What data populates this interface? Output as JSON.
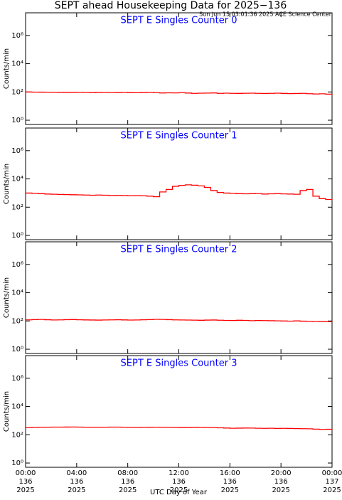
{
  "title": "SEPT ahead Housekeeping Data for 2025−136",
  "subtitle": "Sun Jun 15 03:01:36 2025 ACE Science Center",
  "x_label": "UTC Day of Year",
  "x_axis": {
    "xlim": [
      0,
      24
    ],
    "xticks": [
      {
        "value": 0,
        "label": [
          "00:00",
          "136",
          "2025"
        ]
      },
      {
        "value": 4,
        "label": [
          "04:00",
          "136",
          "2025"
        ]
      },
      {
        "value": 8,
        "label": [
          "08:00",
          "136",
          "2025"
        ]
      },
      {
        "value": 12,
        "label": [
          "12:00",
          "136",
          "2025"
        ]
      },
      {
        "value": 16,
        "label": [
          "16:00",
          "136",
          "2025"
        ]
      },
      {
        "value": 20,
        "label": [
          "20:00",
          "136",
          "2025"
        ]
      },
      {
        "value": 24,
        "label": [
          "00:00",
          "137",
          "2025"
        ]
      }
    ]
  },
  "chart_data": [
    {
      "type": "line",
      "title": "SEPT E Singles Counter 0",
      "y_label": "Counts/min",
      "log_y": true,
      "ylim": [
        0.5,
        40000000
      ],
      "yticks": [
        {
          "value": 1,
          "label": "10⁰"
        },
        {
          "value": 100,
          "label": "10²"
        },
        {
          "value": 10000,
          "label": "10⁴"
        },
        {
          "value": 1000000,
          "label": "10⁶"
        }
      ],
      "x": [
        0,
        0.5,
        1,
        1.5,
        2,
        2.5,
        3,
        3.5,
        4,
        4.5,
        5,
        5.5,
        6,
        6.5,
        7,
        7.5,
        8,
        8.5,
        9,
        9.5,
        10,
        10.5,
        11,
        11.5,
        12,
        12.5,
        13,
        13.5,
        14,
        14.5,
        15,
        15.5,
        16,
        16.5,
        17,
        17.5,
        18,
        18.5,
        19,
        19.5,
        20,
        20.5,
        21,
        21.5,
        22,
        22.5,
        23,
        23.5,
        24
      ],
      "series": [
        {
          "color": "#ff0000",
          "values": [
            100,
            98,
            97,
            96,
            95,
            94,
            93,
            94,
            95,
            92,
            90,
            93,
            92,
            91,
            90,
            92,
            89,
            88,
            90,
            92,
            88,
            85,
            87,
            86,
            88,
            84,
            80,
            82,
            83,
            85,
            80,
            82,
            80,
            79,
            81,
            82,
            80,
            78,
            80,
            82,
            79,
            77,
            78,
            80,
            75,
            72,
            74,
            70,
            72
          ]
        }
      ]
    },
    {
      "type": "line",
      "title": "SEPT E Singles Counter 1",
      "y_label": "Counts/min",
      "log_y": true,
      "ylim": [
        0.5,
        40000000
      ],
      "yticks": [
        {
          "value": 1,
          "label": "10⁰"
        },
        {
          "value": 100,
          "label": "10²"
        },
        {
          "value": 10000,
          "label": "10⁴"
        },
        {
          "value": 1000000,
          "label": "10⁶"
        }
      ],
      "x": [
        0,
        0.5,
        1,
        1.5,
        2,
        2.5,
        3,
        3.5,
        4,
        4.5,
        5,
        5.5,
        6,
        6.5,
        7,
        7.5,
        8,
        8.5,
        9,
        9.5,
        10,
        10.5,
        11,
        11.5,
        12,
        12.5,
        13,
        13.5,
        14,
        14.5,
        15,
        15.5,
        16,
        16.5,
        17,
        17.5,
        18,
        18.5,
        19,
        19.5,
        20,
        20.5,
        21,
        21.5,
        22,
        22.5,
        23,
        23.5,
        24
      ],
      "series": [
        {
          "color": "#ff0000",
          "values": [
            1000,
            950,
            900,
            850,
            820,
            800,
            780,
            760,
            740,
            720,
            700,
            720,
            700,
            680,
            690,
            670,
            650,
            660,
            640,
            600,
            550,
            1200,
            1800,
            3000,
            3500,
            3800,
            3600,
            3200,
            2500,
            1500,
            1100,
            1000,
            950,
            900,
            880,
            900,
            920,
            850,
            880,
            900,
            870,
            850,
            820,
            1500,
            1800,
            600,
            400,
            350,
            320
          ]
        }
      ]
    },
    {
      "type": "line",
      "title": "SEPT E Singles Counter 2",
      "y_label": "Counts/min",
      "log_y": true,
      "ylim": [
        0.5,
        40000000
      ],
      "yticks": [
        {
          "value": 1,
          "label": "10⁰"
        },
        {
          "value": 100,
          "label": "10²"
        },
        {
          "value": 10000,
          "label": "10⁴"
        },
        {
          "value": 1000000,
          "label": "10⁶"
        }
      ],
      "x": [
        0,
        0.5,
        1,
        1.5,
        2,
        2.5,
        3,
        3.5,
        4,
        4.5,
        5,
        5.5,
        6,
        6.5,
        7,
        7.5,
        8,
        8.5,
        9,
        9.5,
        10,
        10.5,
        11,
        11.5,
        12,
        12.5,
        13,
        13.5,
        14,
        14.5,
        15,
        15.5,
        16,
        16.5,
        17,
        17.5,
        18,
        18.5,
        19,
        19.5,
        20,
        20.5,
        21,
        21.5,
        22,
        22.5,
        23,
        23.5,
        24
      ],
      "series": [
        {
          "color": "#ff0000",
          "values": [
            120,
            125,
            128,
            122,
            118,
            120,
            124,
            126,
            121,
            119,
            117,
            115,
            118,
            120,
            122,
            119,
            116,
            118,
            121,
            125,
            130,
            128,
            124,
            120,
            118,
            116,
            114,
            112,
            115,
            117,
            113,
            110,
            108,
            112,
            110,
            105,
            108,
            106,
            104,
            102,
            100,
            98,
            101,
            97,
            95,
            92,
            90,
            88,
            90
          ]
        }
      ]
    },
    {
      "type": "line",
      "title": "SEPT E Singles Counter 3",
      "y_label": "Counts/min",
      "log_y": true,
      "ylim": [
        0.5,
        40000000
      ],
      "yticks": [
        {
          "value": 1,
          "label": "10⁰"
        },
        {
          "value": 100,
          "label": "10²"
        },
        {
          "value": 10000,
          "label": "10⁴"
        },
        {
          "value": 1000000,
          "label": "10⁶"
        }
      ],
      "x": [
        0,
        0.5,
        1,
        1.5,
        2,
        2.5,
        3,
        3.5,
        4,
        4.5,
        5,
        5.5,
        6,
        6.5,
        7,
        7.5,
        8,
        8.5,
        9,
        9.5,
        10,
        10.5,
        11,
        11.5,
        12,
        12.5,
        13,
        13.5,
        14,
        14.5,
        15,
        15.5,
        16,
        16.5,
        17,
        17.5,
        18,
        18.5,
        19,
        19.5,
        20,
        20.5,
        21,
        21.5,
        22,
        22.5,
        23,
        23.5,
        24
      ],
      "series": [
        {
          "color": "#ff0000",
          "values": [
            320,
            330,
            340,
            345,
            350,
            348,
            352,
            355,
            350,
            345,
            340,
            338,
            345,
            350,
            348,
            340,
            335,
            330,
            338,
            342,
            345,
            340,
            335,
            330,
            328,
            332,
            336,
            330,
            325,
            320,
            310,
            300,
            290,
            295,
            300,
            298,
            290,
            285,
            290,
            280,
            285,
            280,
            275,
            270,
            265,
            250,
            240,
            245,
            260
          ]
        }
      ]
    }
  ]
}
